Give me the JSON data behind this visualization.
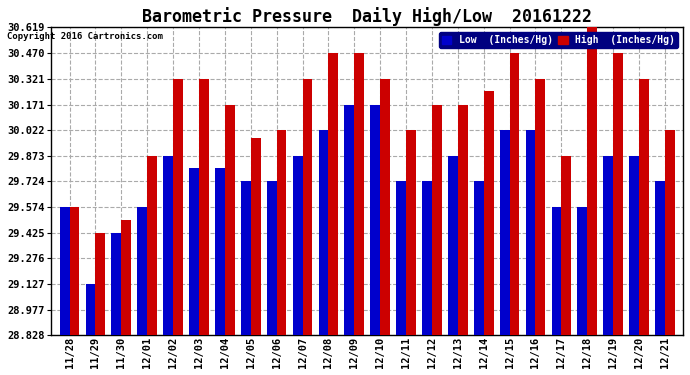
{
  "title": "Barometric Pressure  Daily High/Low  20161222",
  "copyright": "Copyright 2016 Cartronics.com",
  "legend_low": "Low  (Inches/Hg)",
  "legend_high": "High  (Inches/Hg)",
  "categories": [
    "11/28",
    "11/29",
    "11/30",
    "12/01",
    "12/02",
    "12/03",
    "12/04",
    "12/05",
    "12/06",
    "12/07",
    "12/08",
    "12/09",
    "12/10",
    "12/11",
    "12/12",
    "12/13",
    "12/14",
    "12/15",
    "12/16",
    "12/17",
    "12/18",
    "12/19",
    "12/20",
    "12/21"
  ],
  "low_values": [
    29.574,
    29.127,
    29.425,
    29.574,
    29.873,
    29.8,
    29.8,
    29.724,
    29.724,
    29.873,
    30.022,
    30.171,
    30.171,
    29.724,
    29.724,
    29.873,
    29.724,
    30.022,
    30.022,
    29.574,
    29.574,
    29.873,
    29.873,
    29.724
  ],
  "high_values": [
    29.574,
    29.425,
    29.5,
    29.873,
    30.321,
    30.321,
    30.171,
    29.977,
    30.022,
    30.321,
    30.47,
    30.47,
    30.321,
    30.022,
    30.171,
    30.171,
    30.247,
    30.47,
    30.321,
    29.873,
    30.619,
    30.47,
    30.321,
    30.022
  ],
  "yticks": [
    28.828,
    28.977,
    29.127,
    29.276,
    29.425,
    29.574,
    29.724,
    29.873,
    30.022,
    30.171,
    30.321,
    30.47,
    30.619
  ],
  "ymin": 28.828,
  "ymax": 30.619,
  "low_color": "#0000cc",
  "high_color": "#cc0000",
  "bg_color": "#ffffff",
  "grid_color": "#aaaaaa",
  "title_fontsize": 12,
  "tick_fontsize": 7.5,
  "bar_width": 0.38
}
